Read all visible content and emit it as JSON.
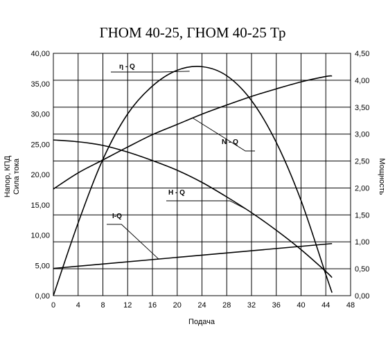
{
  "chart_data": {
    "type": "line",
    "title": "ГНОМ 40-25, ГНОМ 40-25 Тр",
    "xlabel": "Подача",
    "ylabel_left_line1": "Напор, КПД",
    "ylabel_left_line2": "Сила тока",
    "ylabel_right": "Мощность",
    "xlim": [
      0,
      48
    ],
    "ylim_left": [
      0,
      40
    ],
    "ylim_right": [
      0,
      4.5
    ],
    "grid": true,
    "x_ticks": [
      "0",
      "4",
      "8",
      "12",
      "16",
      "20",
      "24",
      "28",
      "32",
      "36",
      "40",
      "44",
      "48"
    ],
    "y_left_ticks": [
      "0,00",
      "5,00",
      "10,00",
      "15,00",
      "20,00",
      "25,00",
      "30,00",
      "35,00",
      "40,00"
    ],
    "y_right_ticks": [
      "0,00",
      "0,50",
      "1,00",
      "1,50",
      "2,00",
      "2,50",
      "3,00",
      "3,50",
      "4,00",
      "4,50"
    ],
    "series": [
      {
        "name": "η - Q",
        "axis": "left",
        "x": [
          0,
          4,
          8,
          12,
          16,
          20,
          24,
          28,
          32,
          36,
          40,
          44,
          45
        ],
        "y": [
          0,
          12,
          22.5,
          30,
          34.6,
          37.2,
          37.8,
          36.3,
          32.2,
          25.3,
          15.7,
          3.5,
          0.5
        ]
      },
      {
        "name": "N - Q",
        "axis": "right",
        "x": [
          0,
          4,
          8,
          12,
          16,
          20,
          24,
          28,
          32,
          36,
          40,
          44,
          45
        ],
        "y": [
          1.98,
          2.28,
          2.52,
          2.76,
          2.99,
          3.18,
          3.37,
          3.54,
          3.7,
          3.84,
          3.97,
          4.07,
          4.08
        ]
      },
      {
        "name": "H - Q",
        "axis": "left",
        "x": [
          0,
          4,
          8,
          12,
          16,
          20,
          24,
          28,
          32,
          36,
          40,
          44,
          45
        ],
        "y": [
          25.7,
          25.4,
          24.8,
          23.7,
          22.3,
          20.7,
          18.7,
          16.3,
          13.7,
          10.8,
          7.6,
          4.0,
          3.0
        ]
      },
      {
        "name": "I-Q",
        "axis": "left",
        "x": [
          0,
          45
        ],
        "y": [
          4.5,
          8.6
        ]
      }
    ]
  }
}
